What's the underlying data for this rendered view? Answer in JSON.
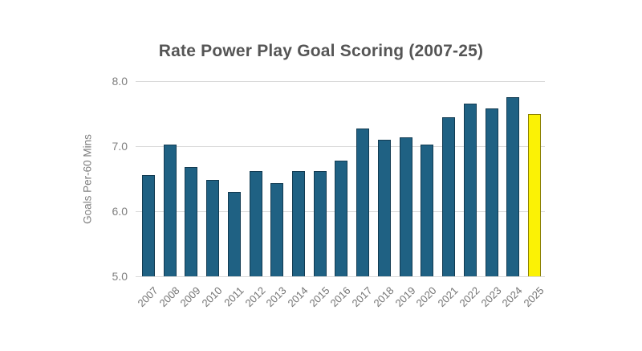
{
  "chart": {
    "title": "Rate Power Play Goal Scoring (2007-25)",
    "ylabel": "Goals Per-60 Mins"
  },
  "chart_data": {
    "type": "bar",
    "title": "Rate Power Play Goal Scoring (2007-25)",
    "xlabel": "",
    "ylabel": "Goals Per-60 Mins",
    "categories": [
      "2007",
      "2008",
      "2009",
      "2010",
      "2011",
      "2012",
      "2013",
      "2014",
      "2015",
      "2016",
      "2017",
      "2018",
      "2019",
      "2020",
      "2021",
      "2022",
      "2023",
      "2024",
      "2025"
    ],
    "values": [
      6.55,
      7.03,
      6.68,
      6.48,
      6.3,
      6.62,
      6.43,
      6.62,
      6.62,
      6.78,
      7.27,
      7.1,
      7.14,
      7.02,
      7.45,
      7.66,
      7.58,
      7.75,
      7.5
    ],
    "ylim": [
      5.0,
      8.0
    ],
    "yticks": [
      8.0,
      7.0,
      6.0,
      5.0
    ],
    "ytick_labels": [
      "8.0",
      "7.0",
      "6.0",
      "5.0"
    ],
    "grid": true,
    "legend": false,
    "colors": {
      "bar_fill": "#1f6183",
      "bar_border": "#123b52",
      "highlight_fill": "#fbf205",
      "highlight_border": "#8b8000",
      "gridline": "#d9d9d9",
      "title_text": "#555555",
      "axis_text": "#7f7f7f"
    },
    "highlight_category": "2025"
  }
}
